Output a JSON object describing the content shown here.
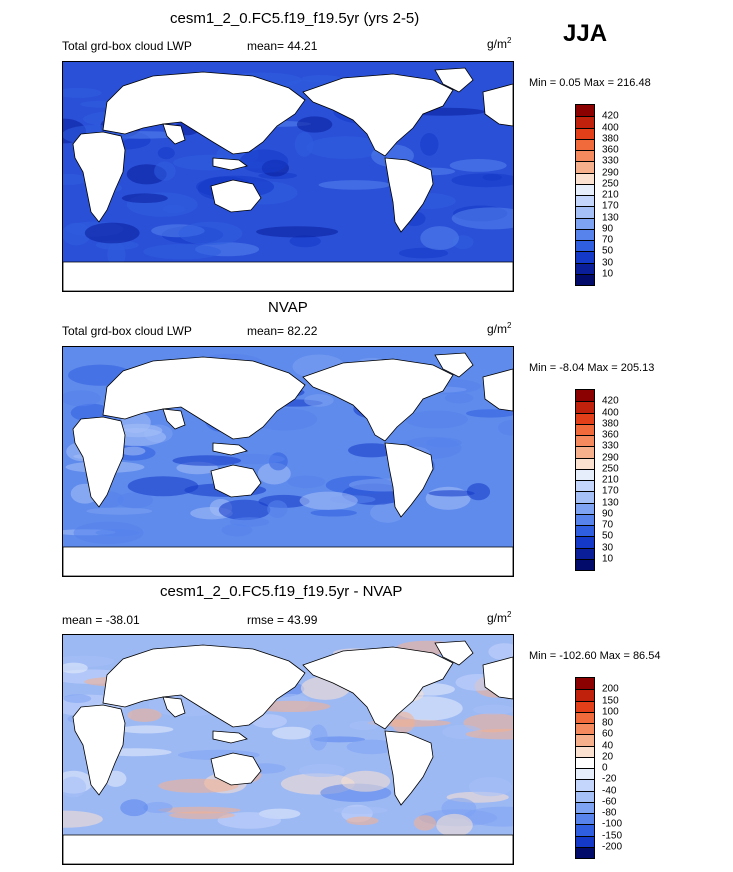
{
  "season": "JJA",
  "panels": [
    {
      "title": "cesm1_2_0.FC5.f19_f19.5yr (yrs 2-5)",
      "left_label": "Total grd-box cloud LWP",
      "center_label": "mean=  44.21",
      "units_base": "g/m",
      "units_exp": "2",
      "minmax": "Min =   0.05 Max = 216.48",
      "colorbar_labels": [
        "420",
        "400",
        "380",
        "360",
        "330",
        "290",
        "250",
        "210",
        "170",
        "130",
        "90",
        "70",
        "50",
        "30",
        "10"
      ],
      "colorbar_colors": [
        "#8b0000",
        "#c0210d",
        "#e3401a",
        "#f06a3b",
        "#f58a5e",
        "#f7b08c",
        "#fbe1cf",
        "#e6eefc",
        "#c4d6fb",
        "#a5c0f7",
        "#7ea3f2",
        "#5683ec",
        "#2f5fe0",
        "#1438c8",
        "#0a1e9a",
        "#020a6a"
      ],
      "field_base": "#2a50d8"
    },
    {
      "title": "NVAP",
      "left_label": "Total grd-box cloud LWP",
      "center_label": "mean=  82.22",
      "units_base": "g/m",
      "units_exp": "2",
      "minmax": "Min =  -8.04 Max = 205.13",
      "colorbar_labels": [
        "420",
        "400",
        "380",
        "360",
        "330",
        "290",
        "250",
        "210",
        "170",
        "130",
        "90",
        "70",
        "50",
        "30",
        "10"
      ],
      "colorbar_colors": [
        "#8b0000",
        "#c0210d",
        "#e3401a",
        "#f06a3b",
        "#f58a5e",
        "#f7b08c",
        "#fbe1cf",
        "#e6eefc",
        "#c4d6fb",
        "#a5c0f7",
        "#7ea3f2",
        "#5683ec",
        "#2f5fe0",
        "#1438c8",
        "#0a1e9a",
        "#020a6a"
      ],
      "field_base": "#5f8bec"
    },
    {
      "title": "cesm1_2_0.FC5.f19_f19.5yr - NVAP",
      "left_label": "mean = -38.01",
      "center_label": "rmse =  43.99",
      "units_base": "g/m",
      "units_exp": "2",
      "minmax": "Min = -102.60 Max =  86.54",
      "colorbar_labels": [
        "200",
        "150",
        "100",
        "80",
        "60",
        "40",
        "20",
        "0",
        "-20",
        "-40",
        "-60",
        "-80",
        "-100",
        "-150",
        "-200"
      ],
      "colorbar_colors": [
        "#8b0000",
        "#c0210d",
        "#e3401a",
        "#f06a3b",
        "#f58a5e",
        "#f7b08c",
        "#fbe1cf",
        "#ffffff",
        "#e6eefc",
        "#c4d6fb",
        "#a5c0f7",
        "#7ea3f2",
        "#5683ec",
        "#2f5fe0",
        "#1438c8",
        "#020a6a"
      ],
      "field_base": "#9db9f4"
    }
  ]
}
